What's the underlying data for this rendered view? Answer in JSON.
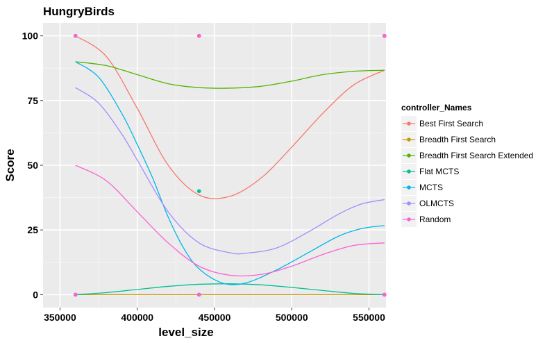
{
  "chart_data": {
    "type": "line",
    "title": "HungryBirds",
    "xlabel": "level_size",
    "ylabel": "Score",
    "x_ticks": [
      350000,
      400000,
      450000,
      500000,
      550000
    ],
    "x_tick_labels": [
      "350000",
      "400000",
      "450000",
      "500000",
      "550000"
    ],
    "y_ticks": [
      0,
      25,
      50,
      75,
      100
    ],
    "y_tick_labels": [
      "0",
      "25",
      "50",
      "75",
      "100"
    ],
    "xlim": [
      339000,
      561000
    ],
    "ylim": [
      -5,
      105
    ],
    "grid": true,
    "legend_title": "controller_Names",
    "legend_position": "right",
    "x": [
      360000,
      440000,
      560000
    ],
    "series": [
      {
        "name": "Best First Search",
        "color": "#F8766D",
        "line": [
          [
            360000,
            100
          ],
          [
            380000,
            92
          ],
          [
            400000,
            72
          ],
          [
            420000,
            50
          ],
          [
            440000,
            38.5
          ],
          [
            460000,
            38
          ],
          [
            480000,
            45
          ],
          [
            500000,
            57
          ],
          [
            520000,
            70
          ],
          [
            540000,
            81
          ],
          [
            560000,
            86.7
          ]
        ],
        "points": [
          [
            360000,
            100
          ],
          [
            440000,
            100
          ],
          [
            560000,
            100
          ]
        ]
      },
      {
        "name": "Breadth First Search",
        "color": "#C49A00",
        "line": [
          [
            360000,
            0
          ],
          [
            560000,
            0
          ]
        ],
        "points": [
          [
            360000,
            0
          ],
          [
            440000,
            0
          ],
          [
            560000,
            0
          ]
        ]
      },
      {
        "name": "Breadth First Search Extended",
        "color": "#53B400",
        "line": [
          [
            360000,
            90
          ],
          [
            380000,
            88.5
          ],
          [
            400000,
            85
          ],
          [
            420000,
            81.5
          ],
          [
            440000,
            80
          ],
          [
            460000,
            79.8
          ],
          [
            480000,
            80.5
          ],
          [
            500000,
            82.5
          ],
          [
            520000,
            85
          ],
          [
            540000,
            86.3
          ],
          [
            560000,
            86.7
          ]
        ],
        "points": [
          [
            360000,
            100
          ],
          [
            440000,
            100
          ],
          [
            560000,
            100
          ]
        ]
      },
      {
        "name": "Flat MCTS",
        "color": "#00C094",
        "line": [
          [
            360000,
            0
          ],
          [
            380000,
            0.8
          ],
          [
            400000,
            2
          ],
          [
            420000,
            3.2
          ],
          [
            440000,
            4
          ],
          [
            460000,
            4.2
          ],
          [
            480000,
            3.8
          ],
          [
            500000,
            2.8
          ],
          [
            520000,
            1.6
          ],
          [
            540000,
            0.5
          ],
          [
            560000,
            0
          ]
        ],
        "points": [
          [
            360000,
            0
          ],
          [
            440000,
            40
          ],
          [
            560000,
            0
          ]
        ]
      },
      {
        "name": "MCTS",
        "color": "#00B6EB",
        "line": [
          [
            360000,
            90
          ],
          [
            375000,
            84
          ],
          [
            390000,
            70
          ],
          [
            400000,
            58
          ],
          [
            410000,
            45
          ],
          [
            420000,
            30
          ],
          [
            430000,
            18
          ],
          [
            440000,
            10
          ],
          [
            455000,
            4.5
          ],
          [
            470000,
            4.5
          ],
          [
            490000,
            9.5
          ],
          [
            510000,
            16
          ],
          [
            530000,
            22.5
          ],
          [
            545000,
            25.5
          ],
          [
            560000,
            26.7
          ]
        ],
        "points": [
          [
            360000,
            0
          ],
          [
            440000,
            0
          ],
          [
            560000,
            0
          ]
        ]
      },
      {
        "name": "OLMCTS",
        "color": "#A58AFF",
        "line": [
          [
            360000,
            80
          ],
          [
            375000,
            74
          ],
          [
            390000,
            62
          ],
          [
            400000,
            52
          ],
          [
            420000,
            32
          ],
          [
            440000,
            20
          ],
          [
            460000,
            16.2
          ],
          [
            470000,
            16
          ],
          [
            490000,
            18
          ],
          [
            510000,
            24
          ],
          [
            530000,
            31
          ],
          [
            545000,
            35
          ],
          [
            560000,
            36.7
          ]
        ],
        "points": [
          [
            360000,
            0
          ],
          [
            440000,
            0
          ],
          [
            560000,
            0
          ]
        ]
      },
      {
        "name": "Random",
        "color": "#FB61D7",
        "line": [
          [
            360000,
            50
          ],
          [
            380000,
            44
          ],
          [
            400000,
            32
          ],
          [
            420000,
            20
          ],
          [
            440000,
            11
          ],
          [
            460000,
            7.5
          ],
          [
            480000,
            7.8
          ],
          [
            500000,
            11
          ],
          [
            520000,
            15.5
          ],
          [
            540000,
            19
          ],
          [
            560000,
            20
          ]
        ],
        "points": [
          [
            360000,
            100
          ],
          [
            360000,
            0
          ],
          [
            440000,
            100
          ],
          [
            440000,
            0
          ],
          [
            560000,
            100
          ],
          [
            560000,
            0
          ]
        ]
      }
    ]
  }
}
